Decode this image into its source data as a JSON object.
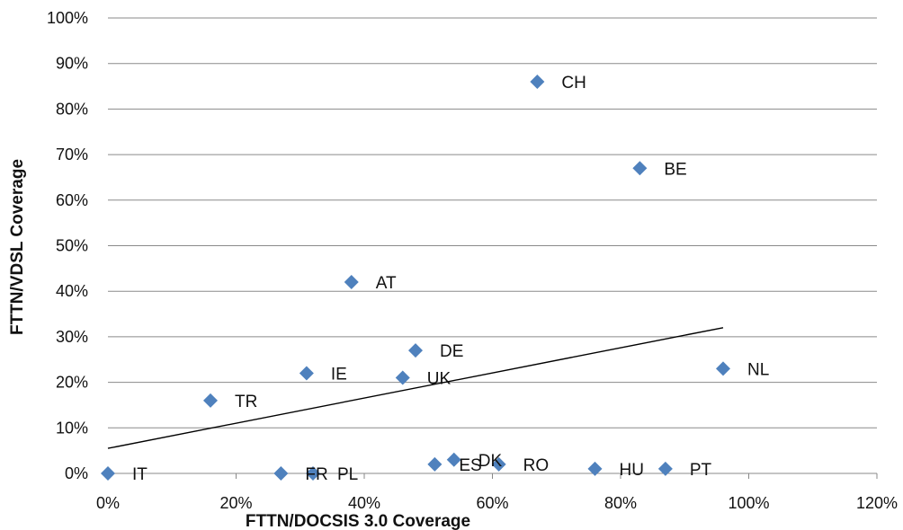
{
  "chart_data": {
    "type": "scatter",
    "title": "",
    "xlabel": "FTTN/DOCSIS 3.0 Coverage",
    "ylabel": "FTTN/VDSL Coverage",
    "xlim": [
      0,
      1.2
    ],
    "ylim": [
      0,
      1.0
    ],
    "x_ticks": [
      0,
      0.2,
      0.4,
      0.6,
      0.8,
      1.0,
      1.2
    ],
    "x_tick_labels": [
      "0%",
      "20%",
      "40%",
      "60%",
      "80%",
      "100%",
      "120%"
    ],
    "y_ticks": [
      0,
      0.1,
      0.2,
      0.3,
      0.4,
      0.5,
      0.6,
      0.7,
      0.8,
      0.9,
      1.0
    ],
    "y_tick_labels": [
      "0%",
      "10%",
      "20%",
      "30%",
      "40%",
      "50%",
      "60%",
      "70%",
      "80%",
      "90%",
      "100%"
    ],
    "grid": "horizontal",
    "marker_color": "#4F81BD",
    "marker": "diamond",
    "points": [
      {
        "label": "IT",
        "x": 0.0,
        "y": 0.0
      },
      {
        "label": "TR",
        "x": 0.16,
        "y": 0.16
      },
      {
        "label": "FR",
        "x": 0.27,
        "y": 0.0
      },
      {
        "label": "PL",
        "x": 0.32,
        "y": 0.0
      },
      {
        "label": "IE",
        "x": 0.31,
        "y": 0.22
      },
      {
        "label": "AT",
        "x": 0.38,
        "y": 0.42
      },
      {
        "label": "UK",
        "x": 0.46,
        "y": 0.21
      },
      {
        "label": "DE",
        "x": 0.48,
        "y": 0.27
      },
      {
        "label": "ES",
        "x": 0.51,
        "y": 0.02
      },
      {
        "label": "DK",
        "x": 0.54,
        "y": 0.03
      },
      {
        "label": "RO",
        "x": 0.61,
        "y": 0.02
      },
      {
        "label": "CH",
        "x": 0.67,
        "y": 0.86
      },
      {
        "label": "HU",
        "x": 0.76,
        "y": 0.01
      },
      {
        "label": "BE",
        "x": 0.83,
        "y": 0.67
      },
      {
        "label": "PT",
        "x": 0.87,
        "y": 0.01
      },
      {
        "label": "NL",
        "x": 0.96,
        "y": 0.23
      }
    ],
    "trendline": {
      "x": [
        0.0,
        0.96
      ],
      "y": [
        0.055,
        0.32
      ],
      "color": "#000000"
    }
  }
}
